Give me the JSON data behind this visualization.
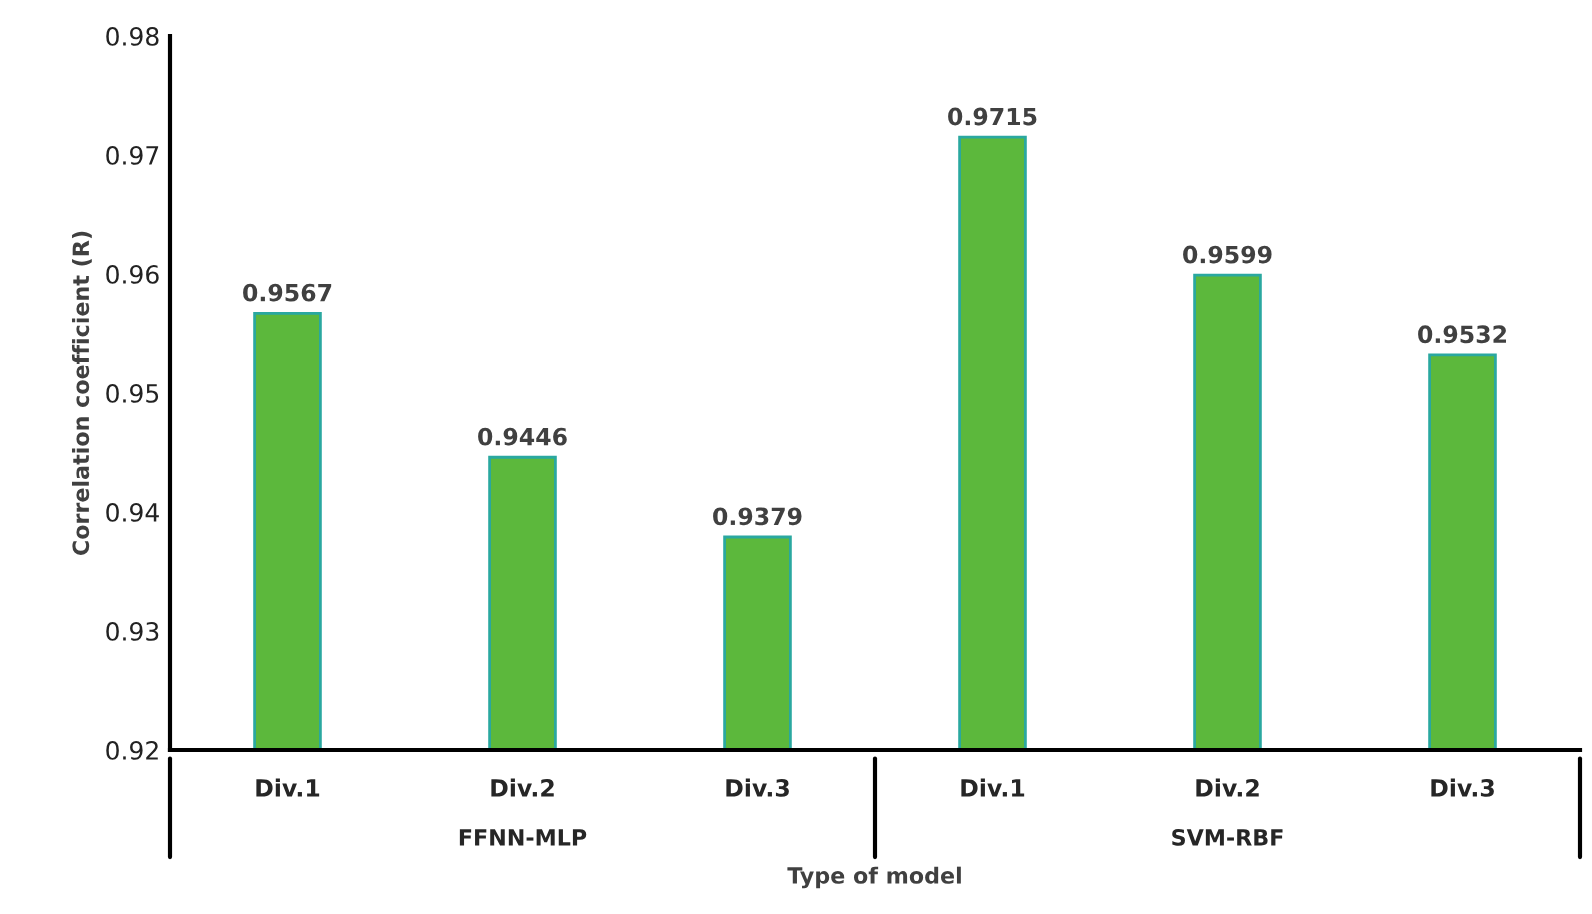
{
  "chart_data": {
    "type": "bar",
    "xlabel": "Type of model",
    "ylabel": "Correlation coefficient (R)",
    "categories": [
      "Div.1",
      "Div.2",
      "Div.3",
      "Div.1",
      "Div.2",
      "Div.3"
    ],
    "values": [
      0.9567,
      0.9446,
      0.9379,
      0.9715,
      0.9599,
      0.9532
    ],
    "color": "#5cb83c",
    "ylim": [
      0.92,
      0.98
    ],
    "yticks": [
      0.92,
      0.93,
      0.94,
      0.95,
      0.96,
      0.97,
      0.98
    ],
    "grid": false,
    "data_labels": true,
    "annotations": [
      "FFNN-MLP",
      "SVM-RBF"
    ]
  }
}
